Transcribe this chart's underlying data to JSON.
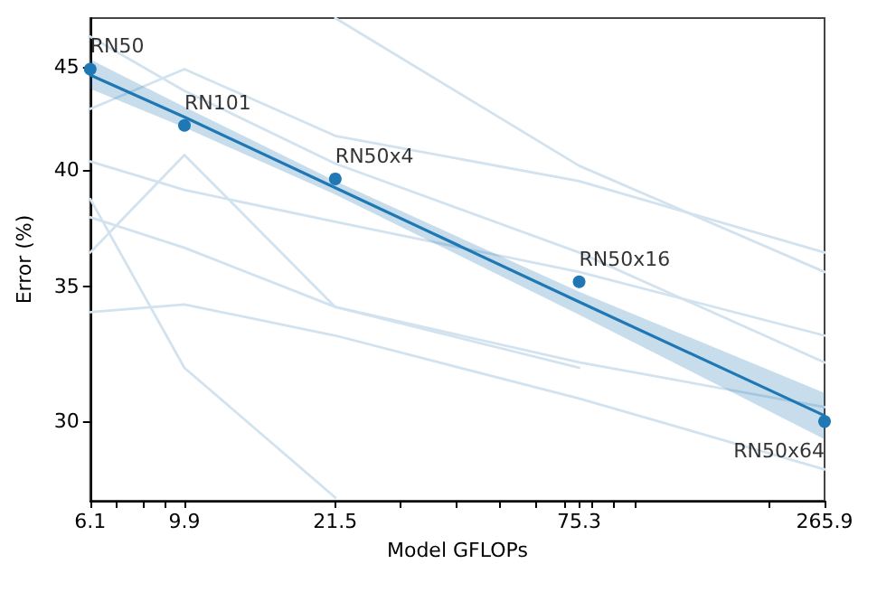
{
  "chart_data": {
    "type": "scatter",
    "xlabel": "Model GFLOPs",
    "ylabel": "Error (%)",
    "log": "xy",
    "xlim": [
      6.1,
      265.9
    ],
    "ylim": [
      27.4,
      47.6
    ],
    "xticks": [
      6.1,
      {
        "value": 7,
        "label": null
      },
      {
        "value": 8,
        "label": null
      },
      {
        "value": 9,
        "label": null
      },
      9.9,
      21.5,
      {
        "value": 30,
        "label": null
      },
      {
        "value": 40,
        "label": null
      },
      {
        "value": 50,
        "label": null
      },
      {
        "value": 60,
        "label": null
      },
      {
        "value": 70,
        "label": null
      },
      75.3,
      {
        "value": 80,
        "label": null
      },
      {
        "value": 90,
        "label": null
      },
      {
        "value": 100,
        "label": null
      },
      {
        "value": 200,
        "label": null
      },
      265.9
    ],
    "yticks": [
      30,
      35,
      40,
      45
    ],
    "grid": false,
    "annotations": [
      {
        "text": "RN50",
        "x": 6.1,
        "y": 44.9
      },
      {
        "text": "RN101",
        "x": 9.9,
        "y": 42.1
      },
      {
        "text": "RN50x4",
        "x": 21.5,
        "y": 39.6
      },
      {
        "text": "RN50x16",
        "x": 75.3,
        "y": 35.2
      },
      {
        "text": "RN50x64",
        "x": 265.9,
        "y": 30.0
      }
    ],
    "series": [
      {
        "type": "line",
        "color": "#d2e3ef",
        "x": [
          6.1,
          9.9,
          21.5,
          75.3,
          265.9
        ],
        "values": [
          40.4,
          39.1,
          37.7,
          35.6,
          33.1
        ]
      },
      {
        "type": "line",
        "color": "#d2e3ef",
        "x": [
          6.1,
          9.9,
          21.5,
          75.3,
          265.9
        ],
        "values": [
          37.9,
          36.6,
          34.2,
          32.1,
          30.5
        ]
      },
      {
        "type": "line",
        "color": "#d2e3ef",
        "x": [
          6.1,
          9.9,
          21.5,
          75.3,
          265.9
        ],
        "values": [
          34.0,
          34.3,
          33.1,
          30.8,
          28.4
        ]
      },
      {
        "type": "line",
        "color": "#d2e3ef",
        "x": [
          6.1,
          9.9,
          21.5,
          75.3,
          265.9
        ],
        "values": [
          42.9,
          44.9,
          41.6,
          39.5,
          36.4
        ]
      },
      {
        "type": "line",
        "color": "#d2e3ef",
        "x": [
          6.1,
          9.9,
          21.5,
          75.3
        ],
        "values": [
          36.4,
          40.7,
          34.2,
          31.9
        ]
      },
      {
        "type": "line",
        "color": "#d2e3ef",
        "x": [
          6.1,
          9.9,
          21.5
        ],
        "values": [
          38.7,
          31.9,
          27.5
        ]
      },
      {
        "type": "line",
        "color": "#d2e3ef",
        "x": [
          6.1,
          9.9,
          21.5,
          75.3,
          265.9
        ],
        "values": [
          46.6,
          43.8,
          40.3,
          36.4,
          32.1
        ]
      },
      {
        "type": "line",
        "color": "#d2e3ef",
        "x": [
          21.5,
          75.3,
          265.9
        ],
        "values": [
          47.6,
          40.2,
          35.6
        ]
      },
      {
        "type": "line",
        "color": "#1f77b4",
        "x": [
          6.1,
          9.9,
          21.5,
          75.3,
          265.9
        ],
        "values": [
          44.6,
          42.5,
          39.2,
          34.4,
          30.2
        ],
        "lower": [
          43.9,
          42.0,
          38.9,
          33.9,
          29.4
        ],
        "upper": [
          45.4,
          43.0,
          39.5,
          34.8,
          31.0
        ]
      },
      {
        "color": "#1f77b4",
        "marker": "circle",
        "x": [
          6.1,
          9.9,
          21.5,
          75.3,
          265.9
        ],
        "values": [
          44.9,
          42.1,
          39.6,
          35.2,
          30.0
        ]
      }
    ]
  }
}
